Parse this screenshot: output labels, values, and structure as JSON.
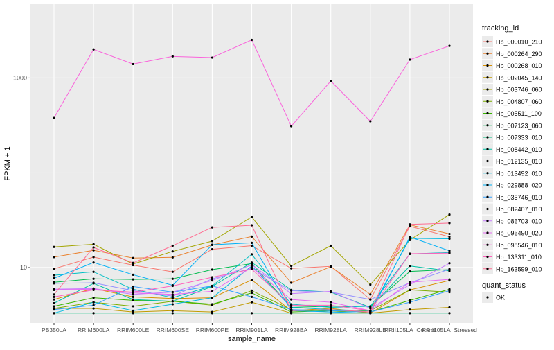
{
  "chart_data": {
    "type": "line",
    "xlabel": "sample_name",
    "ylabel": "FPKM + 1",
    "y_scale": "log10",
    "ylim": [
      2.6,
      6000
    ],
    "y_ticks": [
      10,
      1000
    ],
    "y_tick_labels": [
      "10",
      "1000"
    ],
    "grid": true,
    "legend_position": "right",
    "categories": [
      "PB350LA",
      "RRIM600LA",
      "RRIM600LE",
      "RRIM600SE",
      "RRIM600PE",
      "RRIM901LA",
      "RRIM928BA",
      "RRIM928LA",
      "RRIM928LE",
      "RRII105LA_Control",
      "RRII105LA_Stressed"
    ],
    "series": [
      {
        "name": "Hb_000010_210",
        "color": "#F8766D",
        "values": [
          9.7,
          12.9,
          10.6,
          9.0,
          15.6,
          17.0,
          9.8,
          10.3,
          4.6,
          27.2,
          21.1
        ]
      },
      {
        "name": "Hb_000264_290",
        "color": "#EA8331",
        "values": [
          12.9,
          15.2,
          12.6,
          12.8,
          17.3,
          21.2,
          6.9,
          10.2,
          5.2,
          28.2,
          22.6
        ]
      },
      {
        "name": "Hb_000268_010",
        "color": "#D89000",
        "values": [
          4.6,
          6.0,
          4.9,
          4.7,
          4.8,
          7.4,
          3.5,
          3.7,
          3.3,
          5.8,
          7.3
        ]
      },
      {
        "name": "Hb_002045_140",
        "color": "#C09B00",
        "values": [
          3.7,
          3.7,
          3.4,
          3.5,
          3.4,
          4.3,
          3.3,
          3.3,
          3.3,
          3.6,
          3.8
        ]
      },
      {
        "name": "Hb_003746_060",
        "color": "#A3A500",
        "values": [
          16.5,
          17.6,
          10.9,
          14.8,
          19.0,
          34.1,
          10.4,
          17.0,
          6.6,
          19.5,
          36.2
        ]
      },
      {
        "name": "Hb_004807_060",
        "color": "#7CAE00",
        "values": [
          3.7,
          4.3,
          3.9,
          4.4,
          4.0,
          5.7,
          3.6,
          3.4,
          3.5,
          5.8,
          5.5
        ]
      },
      {
        "name": "Hb_005511_100",
        "color": "#39B600",
        "values": [
          3.9,
          4.8,
          4.5,
          4.4,
          4.1,
          5.4,
          3.4,
          3.5,
          3.4,
          4.5,
          5.9
        ]
      },
      {
        "name": "Hb_007123_060",
        "color": "#00BB4E",
        "values": [
          7.0,
          7.6,
          7.5,
          7.6,
          9.5,
          11.0,
          3.8,
          3.9,
          3.9,
          9.1,
          9.5
        ]
      },
      {
        "name": "Hb_007333_010",
        "color": "#00BF7D",
        "values": [
          3.3,
          3.3,
          3.3,
          3.3,
          3.3,
          3.3,
          3.3,
          3.3,
          3.3,
          3.3,
          3.3
        ]
      },
      {
        "name": "Hb_008442_010",
        "color": "#00C1A3",
        "values": [
          4.2,
          6.8,
          4.6,
          4.4,
          6.3,
          11.3,
          5.8,
          5.5,
          3.8,
          10.4,
          9.2
        ]
      },
      {
        "name": "Hb_012135_010",
        "color": "#00BFC4",
        "values": [
          8.3,
          9.0,
          5.9,
          4.8,
          6.4,
          13.8,
          4.1,
          3.8,
          3.9,
          13.9,
          14.4
        ]
      },
      {
        "name": "Hb_013492_010",
        "color": "#00BAE0",
        "values": [
          3.3,
          4.3,
          3.5,
          4.1,
          4.8,
          10.4,
          3.8,
          3.6,
          3.5,
          20.3,
          20.1
        ]
      },
      {
        "name": "Hb_029888_020",
        "color": "#00B0F6",
        "values": [
          7.7,
          11.3,
          8.4,
          6.5,
          17.4,
          18.2,
          3.5,
          3.4,
          3.3,
          21.0,
          15.0
        ]
      },
      {
        "name": "Hb_035746_010",
        "color": "#35A2FF",
        "values": [
          3.6,
          4.0,
          6.3,
          5.5,
          6.4,
          4.9,
          3.6,
          3.5,
          3.4,
          4.3,
          5.7
        ]
      },
      {
        "name": "Hb_082407_010",
        "color": "#9590FF",
        "values": [
          6.8,
          6.9,
          5.7,
          5.0,
          7.6,
          9.8,
          5.7,
          5.5,
          4.6,
          6.9,
          9.6
        ]
      },
      {
        "name": "Hb_086703_010",
        "color": "#C77CFF",
        "values": [
          5.9,
          6.0,
          5.2,
          5.5,
          7.3,
          10.7,
          5.3,
          5.6,
          3.7,
          6.6,
          11.1
        ]
      },
      {
        "name": "Hb_096490_020",
        "color": "#E76BF3",
        "values": [
          5.8,
          5.9,
          5.4,
          5.2,
          5.6,
          10.0,
          4.6,
          4.3,
          3.5,
          7.0,
          7.5
        ]
      },
      {
        "name": "Hb_098546_010",
        "color": "#FA62DB",
        "values": [
          379,
          2000,
          1400,
          1690,
          1640,
          2520,
          310,
          928,
          349,
          1560,
          2180
        ]
      },
      {
        "name": "Hb_133311_010",
        "color": "#FF62BC",
        "values": [
          4.9,
          5.8,
          5.5,
          6.4,
          7.9,
          9.6,
          4.0,
          4.0,
          3.5,
          14.0,
          14.2
        ]
      },
      {
        "name": "Hb_163599_010",
        "color": "#FF6C91",
        "values": [
          5.2,
          16.3,
          11.2,
          17.0,
          26.5,
          27.9,
          3.5,
          3.6,
          3.4,
          28.5,
          29.4
        ]
      }
    ],
    "legend_title": "tracking_id",
    "legend2": {
      "title": "quant_status",
      "items": [
        "OK"
      ]
    }
  },
  "colors": {
    "panel": "#EBEBEB",
    "grid_major": "#FFFFFF",
    "grid_minor": "#F5F5F5",
    "axis_text": "#4D4D4D",
    "point": "#000000"
  }
}
